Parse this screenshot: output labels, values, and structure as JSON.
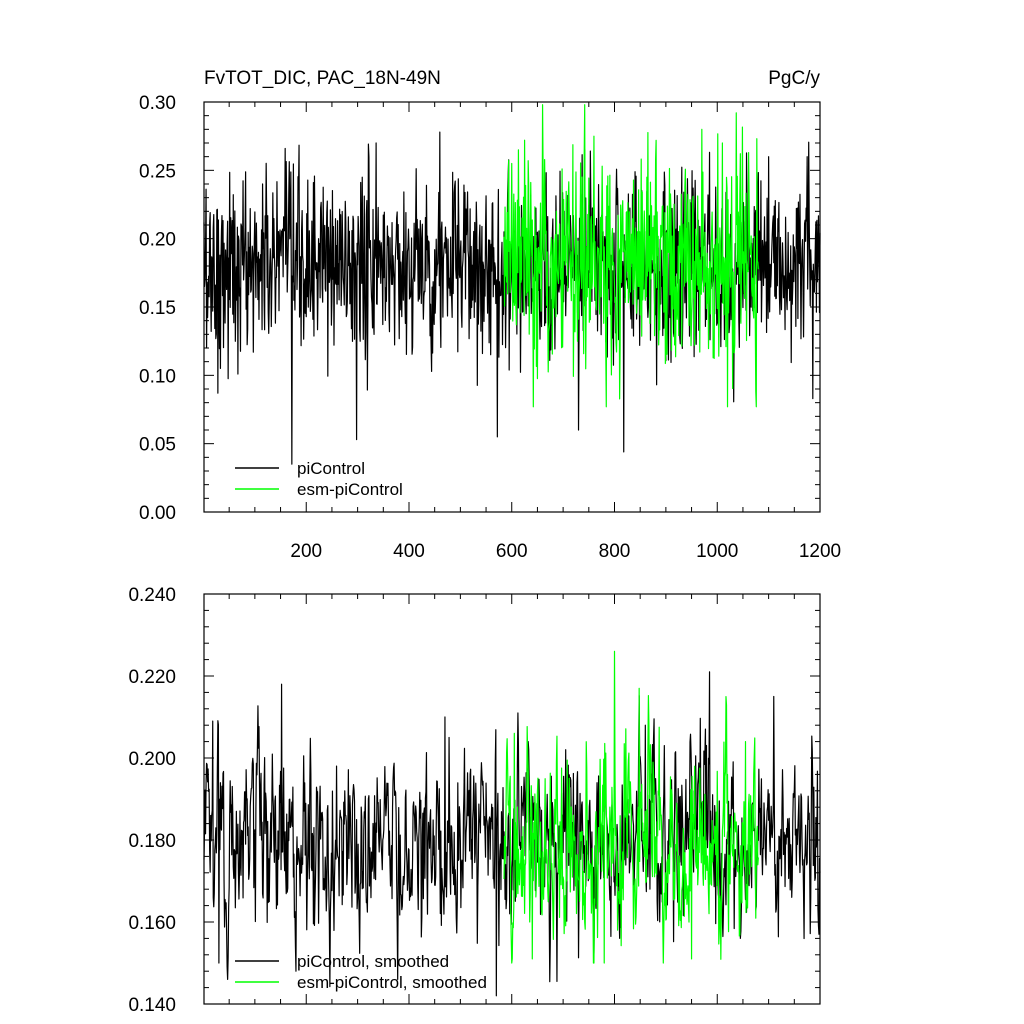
{
  "figure": {
    "title_left": "FvTOT_DIC, PAC_18N-49N",
    "title_right": "PgC/y"
  },
  "colors": {
    "piControl": "#000000",
    "esm_piControl": "#00ff00"
  },
  "chart_data": [
    {
      "type": "line",
      "title": "FvTOT_DIC, PAC_18N-49N",
      "units": "PgC/y",
      "xlim": [
        1,
        1200
      ],
      "ylim": [
        0.0,
        0.3
      ],
      "x_ticks": [
        200,
        400,
        600,
        800,
        1000,
        1200
      ],
      "x_tick_labels": [
        "200",
        "400",
        "600",
        "800",
        "1000",
        "1200"
      ],
      "y_ticks": [
        0.0,
        0.05,
        0.1,
        0.15,
        0.2,
        0.25,
        0.3
      ],
      "y_tick_labels": [
        "0.00",
        "0.05",
        "0.10",
        "0.15",
        "0.20",
        "0.25",
        "0.30"
      ],
      "grid": false,
      "legend_position": "bottom-left",
      "series": [
        {
          "name": "piControl",
          "color": "#000000",
          "x_range": [
            1,
            1200
          ],
          "n_points": 1200,
          "mean": 0.18,
          "std": 0.033,
          "min": 0.035,
          "max": 0.278,
          "values_note": "",
          "notable_points": [
            [
              6,
              0.12
            ],
            [
              28,
              0.087
            ],
            [
              67,
              0.101
            ],
            [
              115,
              0.24
            ],
            [
              172,
              0.035
            ],
            [
              298,
              0.053
            ],
            [
              460,
              0.278
            ],
            [
              572,
              0.055
            ],
            [
              730,
              0.06
            ],
            [
              818,
              0.044
            ],
            [
              1100,
              0.26
            ],
            [
              1175,
              0.26
            ],
            [
              1186,
              0.083
            ]
          ]
        },
        {
          "name": "esm-piControl",
          "color": "#00ff00",
          "x_range": [
            585,
            1080
          ],
          "n_points": 496,
          "mean": 0.18,
          "std": 0.038,
          "min": 0.077,
          "max": 0.298,
          "notable_points": [
            [
              600,
              0.255
            ],
            [
              625,
              0.272
            ],
            [
              642,
              0.077
            ],
            [
              742,
              0.298
            ],
            [
              760,
              0.275
            ],
            [
              970,
              0.28
            ],
            [
              1010,
              0.27
            ],
            [
              1075,
              0.088
            ]
          ]
        }
      ]
    },
    {
      "type": "line",
      "title": "",
      "xlim": [
        1,
        1200
      ],
      "ylim": [
        0.14,
        0.24
      ],
      "x_ticks": [
        200,
        400,
        600,
        800,
        1000,
        1200
      ],
      "x_tick_labels": [],
      "y_ticks": [
        0.14,
        0.16,
        0.18,
        0.2,
        0.22,
        0.24
      ],
      "y_tick_labels": [
        "0.140",
        "0.160",
        "0.180",
        "0.200",
        "0.220",
        "0.240"
      ],
      "grid": false,
      "legend_position": "bottom-left",
      "series": [
        {
          "name": "piControl, smoothed",
          "color": "#000000",
          "x_range": [
            1,
            1200
          ],
          "n_points": 1200,
          "mean": 0.18,
          "std": 0.011,
          "min": 0.142,
          "max": 0.221,
          "notable_points": [
            [
              18,
              0.209
            ],
            [
              30,
              0.15
            ],
            [
              152,
              0.218
            ],
            [
              180,
              0.148
            ],
            [
              470,
              0.21
            ],
            [
              570,
              0.142
            ],
            [
              860,
              0.208
            ],
            [
              985,
              0.221
            ],
            [
              1110,
              0.215
            ],
            [
              1198,
              0.157
            ]
          ]
        },
        {
          "name": "esm-piControl, smoothed",
          "color": "#00ff00",
          "x_range": [
            585,
            1080
          ],
          "n_points": 496,
          "mean": 0.178,
          "std": 0.012,
          "min": 0.15,
          "max": 0.226,
          "notable_points": [
            [
              605,
              0.206
            ],
            [
              640,
              0.151
            ],
            [
              780,
              0.15
            ],
            [
              800,
              0.226
            ],
            [
              848,
              0.217
            ],
            [
              950,
              0.151
            ],
            [
              1055,
              0.204
            ]
          ]
        }
      ]
    }
  ],
  "legend_top": [
    {
      "label": "piControl",
      "color": "#000000"
    },
    {
      "label": "esm-piControl",
      "color": "#00ff00"
    }
  ],
  "legend_bottom": [
    {
      "label": "piControl, smoothed",
      "color": "#000000"
    },
    {
      "label": "esm-piControl, smoothed",
      "color": "#00ff00"
    }
  ]
}
